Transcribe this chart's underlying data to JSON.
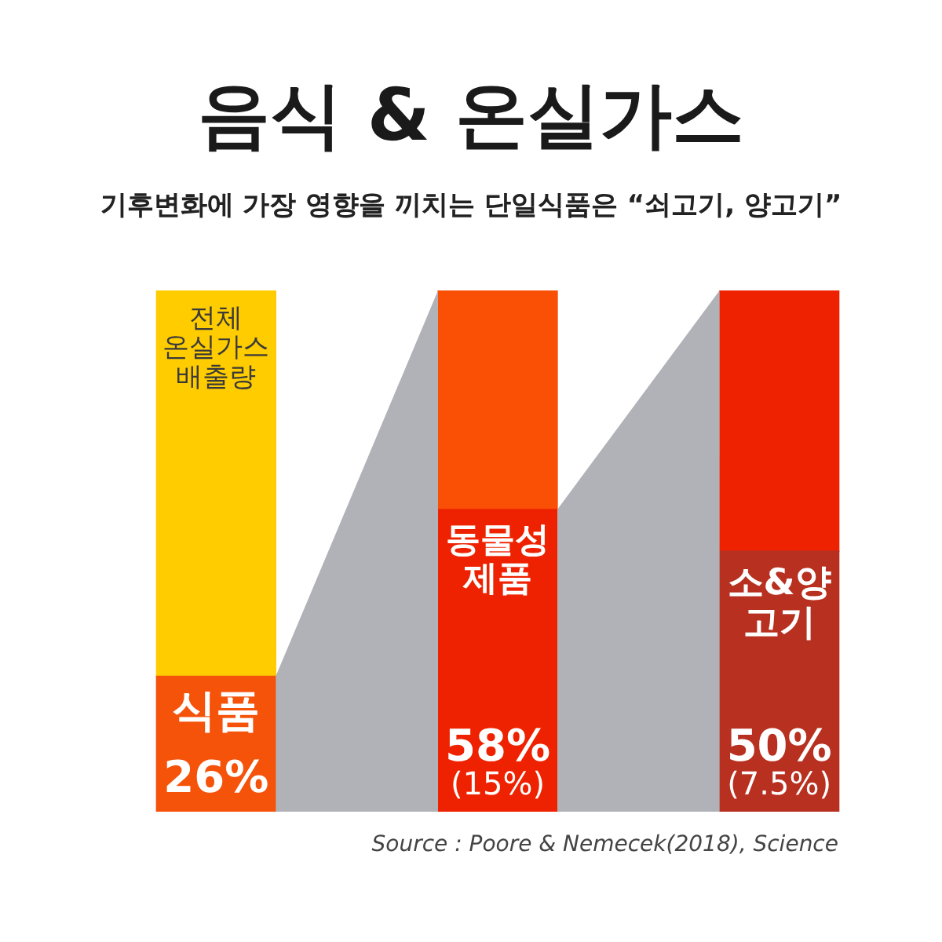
{
  "chart_data": {
    "type": "bar",
    "title": "음식 & 온실가스",
    "subtitle": "기후변화에 가장 영향을 끼치는 단일식품은 “쇠고기, 양고기”",
    "annotations": [
      "Source : Poore & Nemecek(2018), Science"
    ],
    "categories": [
      null,
      null,
      null
    ],
    "stacked": true,
    "ylim": [
      0,
      100
    ],
    "tick_labels": false,
    "series": [
      {
        "colors": [
          "#f5520a",
          "#ee2200",
          "#b83020"
        ],
        "values": [
          26,
          58,
          50
        ],
        "value_labels": [
          "식품\n\n26%",
          "동물성\n제품\n\n58%\n(15%)",
          "소&양\n고기\n\n50%\n(7.5%)"
        ]
      },
      {
        "colors": [
          "#ffcc00",
          "#fa5005",
          "#ee2200"
        ],
        "values": [
          74,
          42,
          50
        ],
        "value_labels": [
          "전체\n온실가스\n배출량",
          null,
          null
        ]
      }
    ]
  }
}
